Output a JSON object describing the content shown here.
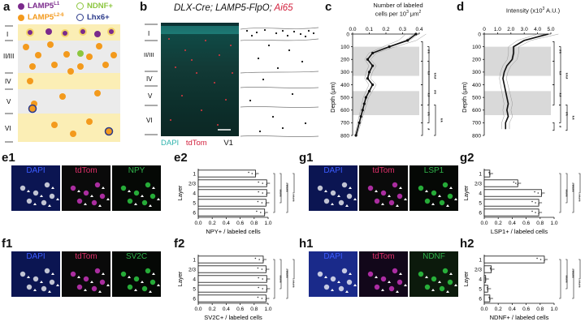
{
  "panels": {
    "a": {
      "letter": "a",
      "legend": {
        "lamp5_l1": "LAMP5",
        "lamp5_l1_sup": "L1",
        "lamp5_l26": "LAMP5",
        "lamp5_l26_sup": "L2-6",
        "ndnf": "NDNF+",
        "lhx6": "Lhx6+"
      },
      "layers": [
        "I",
        "II/III",
        "IV",
        "V",
        "VI"
      ],
      "colors": {
        "purple": "#7b2a8c",
        "orange": "#f39a1d",
        "green": "#8cc63f",
        "navy": "#2b3a8a",
        "band": "#fbeeb5",
        "band_alt": "#e6e6e6"
      }
    },
    "b": {
      "letter": "b",
      "title_black": "DLX-Cre; LAMP5-FlpO; ",
      "title_red": "Ai65",
      "layers": [
        "I",
        "II/III",
        "IV",
        "V",
        "VI"
      ],
      "dapi": "DAPI",
      "tdtom": "tdTom",
      "region": "V1"
    },
    "c": {
      "letter": "c",
      "xlabel_line1": "Number of labeled",
      "xlabel_line2": "cells per 10",
      "xlabel_sup": "3",
      "xlabel_unit": " μm",
      "xlabel_unit_sup": "2",
      "ylabel": "Depth (μm)",
      "xticks": [
        "0.0",
        "0.1",
        "0.2",
        "0.3",
        "0.4"
      ],
      "yticks": [
        "0",
        "100",
        "200",
        "300",
        "400",
        "500",
        "600",
        "700",
        "800"
      ],
      "sig": [
        "**",
        "**",
        "***",
        "**",
        "**",
        "**",
        "*",
        "**"
      ]
    },
    "d": {
      "letter": "d",
      "xlabel": "Intensity (x10",
      "xlabel_sup": "3",
      "xlabel_end": " A.U.)",
      "ylabel": "Depth (μm)",
      "xticks": [
        "0",
        "1.0",
        "2.0",
        "3.0",
        "4.0",
        "5.0"
      ],
      "yticks": [
        "0",
        "100",
        "200",
        "300",
        "400",
        "500",
        "600",
        "700",
        "800"
      ],
      "sig": [
        "**",
        "**",
        "***",
        "**",
        "**",
        "*",
        "**"
      ]
    },
    "e1": {
      "letter": "e1",
      "labels": [
        "DAPI",
        "tdTom",
        "NPY"
      ]
    },
    "f1": {
      "letter": "f1",
      "labels": [
        "DAPI",
        "tdTom",
        "SV2C"
      ]
    },
    "g1": {
      "letter": "g1",
      "labels": [
        "DAPI",
        "tdTom",
        "LSP1"
      ]
    },
    "h1": {
      "letter": "h1",
      "labels": [
        "DAPI",
        "tdTom",
        "NDNF"
      ]
    },
    "e2": {
      "letter": "e2",
      "ylabel": "Layer",
      "xlabel": "NPY+ / labeled cells",
      "sig": "****"
    },
    "f2": {
      "letter": "f2",
      "ylabel": "Layer",
      "xlabel": "SV2C+ / labeled cells",
      "sig": "****"
    },
    "g2": {
      "letter": "g2",
      "ylabel": "Layer",
      "xlabel": "LSP1+ / labeled cells",
      "sig": "****"
    },
    "h2": {
      "letter": "h2",
      "ylabel": "Layer",
      "xlabel": "NDNF+ / labeled cells",
      "sig": "****"
    }
  },
  "chart_data": [
    {
      "type": "line",
      "panel": "c",
      "xlabel": "Number of labeled cells per 10^3 μm^2",
      "ylabel": "Depth (μm)",
      "xlim": [
        0,
        0.4
      ],
      "ylim": [
        800,
        0
      ],
      "x": [
        0.38,
        0.33,
        0.22,
        0.12,
        0.09,
        0.12,
        0.1,
        0.09,
        0.12,
        0.1,
        0.08,
        0.07,
        0.06,
        0.05,
        0.04,
        0.02
      ],
      "y": [
        0,
        50,
        100,
        150,
        200,
        250,
        300,
        350,
        400,
        450,
        500,
        550,
        600,
        650,
        700,
        800
      ]
    },
    {
      "type": "line",
      "panel": "d",
      "xlabel": "Intensity (x10^3 A.U.)",
      "ylabel": "Depth (μm)",
      "xlim": [
        0,
        5.0
      ],
      "ylim": [
        800,
        0
      ],
      "x": [
        4.8,
        3.0,
        2.2,
        2.2,
        2.1,
        1.7,
        1.5,
        1.4,
        1.5,
        1.6,
        1.7,
        1.8,
        1.7,
        1.8,
        1.6,
        1.6
      ],
      "y": [
        0,
        50,
        100,
        150,
        200,
        250,
        300,
        350,
        400,
        450,
        500,
        550,
        600,
        650,
        700,
        750
      ]
    },
    {
      "type": "bar",
      "panel": "e2",
      "categories": [
        "1",
        "2/3",
        "4",
        "5",
        "6"
      ],
      "values": [
        0.82,
        0.98,
        0.98,
        0.97,
        0.95
      ],
      "xlabel": "NPY+ / labeled cells",
      "ylabel": "Layer",
      "xlim": [
        0,
        1.0
      ],
      "xticks": [
        "0.0",
        "0.2",
        "0.4",
        "0.6",
        "0.8",
        "1.0"
      ]
    },
    {
      "type": "bar",
      "panel": "f2",
      "categories": [
        "1",
        "2/3",
        "4",
        "5",
        "6"
      ],
      "values": [
        0.93,
        0.97,
        0.98,
        0.98,
        0.97
      ],
      "xlabel": "SV2C+ / labeled cells",
      "ylabel": "Layer",
      "xlim": [
        0,
        1.0
      ],
      "xticks": [
        "0.0",
        "0.2",
        "0.4",
        "0.6",
        "0.8",
        "1.0"
      ]
    },
    {
      "type": "bar",
      "panel": "g2",
      "categories": [
        "1",
        "2/3",
        "4",
        "5",
        "6"
      ],
      "values": [
        0.08,
        0.48,
        0.82,
        0.78,
        0.78
      ],
      "xlabel": "LSP1+ / labeled cells",
      "ylabel": "Layer",
      "xlim": [
        0,
        1.0
      ],
      "xticks": [
        "0.0",
        "0.2",
        "0.4",
        "0.6",
        "0.8",
        "1.0"
      ]
    },
    {
      "type": "bar",
      "panel": "h2",
      "categories": [
        "1",
        "2/3",
        "4",
        "5",
        "6"
      ],
      "values": [
        0.86,
        0.1,
        0.02,
        0.05,
        0.08
      ],
      "xlabel": "NDNF+ / labeled cells",
      "ylabel": "Layer",
      "xlim": [
        0,
        1.0
      ],
      "xticks": [
        "0.0",
        "0.2",
        "0.4",
        "0.6",
        "0.8",
        "1.0"
      ]
    }
  ]
}
